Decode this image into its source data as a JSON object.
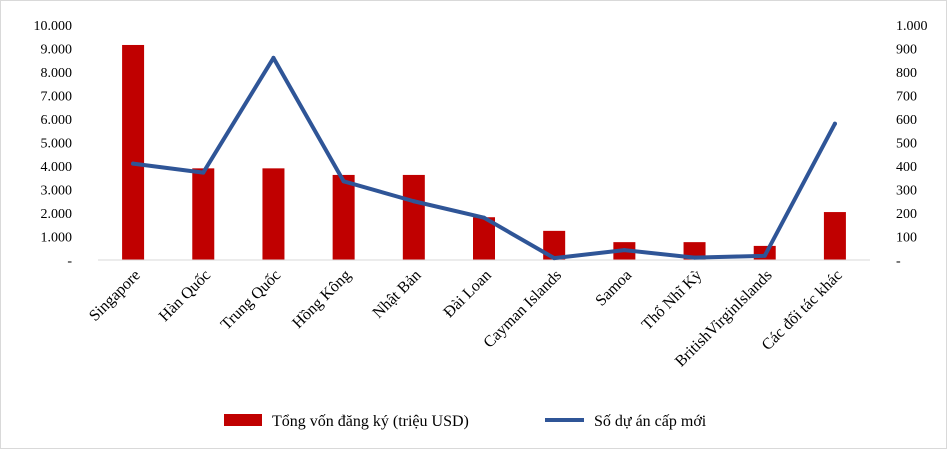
{
  "chart_data": {
    "type": "bar",
    "categories": [
      "Singapore",
      "Hàn Quốc",
      "Trung Quốc",
      "Hồng Kông",
      "Nhật Bản",
      "Đài Loan",
      "Cayman Islands",
      "Samoa",
      "Thổ Nhĩ Kỳ",
      "BritishVirginIslands",
      "Các đối tác khác"
    ],
    "series": [
      {
        "name": "Tổng vốn đăng ký (triệu USD)",
        "type": "bar",
        "axis": "left",
        "color": "#c00000",
        "values": [
          9150,
          3900,
          3900,
          3620,
          3620,
          1820,
          1240,
          760,
          760,
          600,
          2040
        ]
      },
      {
        "name": "Số dự án cấp mới",
        "type": "line",
        "axis": "right",
        "color": "#2f5597",
        "values": [
          410,
          372,
          860,
          335,
          250,
          180,
          8,
          42,
          10,
          18,
          580
        ]
      }
    ],
    "y_left": {
      "ylim": [
        0,
        10000
      ],
      "tick_values": [
        0,
        1000,
        2000,
        3000,
        4000,
        5000,
        6000,
        7000,
        8000,
        9000,
        10000
      ],
      "tick_labels": [
        "-",
        "1.000",
        "2.000",
        "3.000",
        "4.000",
        "5.000",
        "6.000",
        "7.000",
        "8.000",
        "9.000",
        "10.000"
      ]
    },
    "y_right": {
      "ylim": [
        0,
        1000
      ],
      "tick_values": [
        0,
        100,
        200,
        300,
        400,
        500,
        600,
        700,
        800,
        900,
        1000
      ],
      "tick_labels": [
        "-",
        "100",
        "200",
        "300",
        "400",
        "500",
        "600",
        "700",
        "800",
        "900",
        "1.000"
      ]
    },
    "title": "",
    "xlabel": "",
    "ylabel": "",
    "grid": false,
    "legend_position": "bottom"
  }
}
